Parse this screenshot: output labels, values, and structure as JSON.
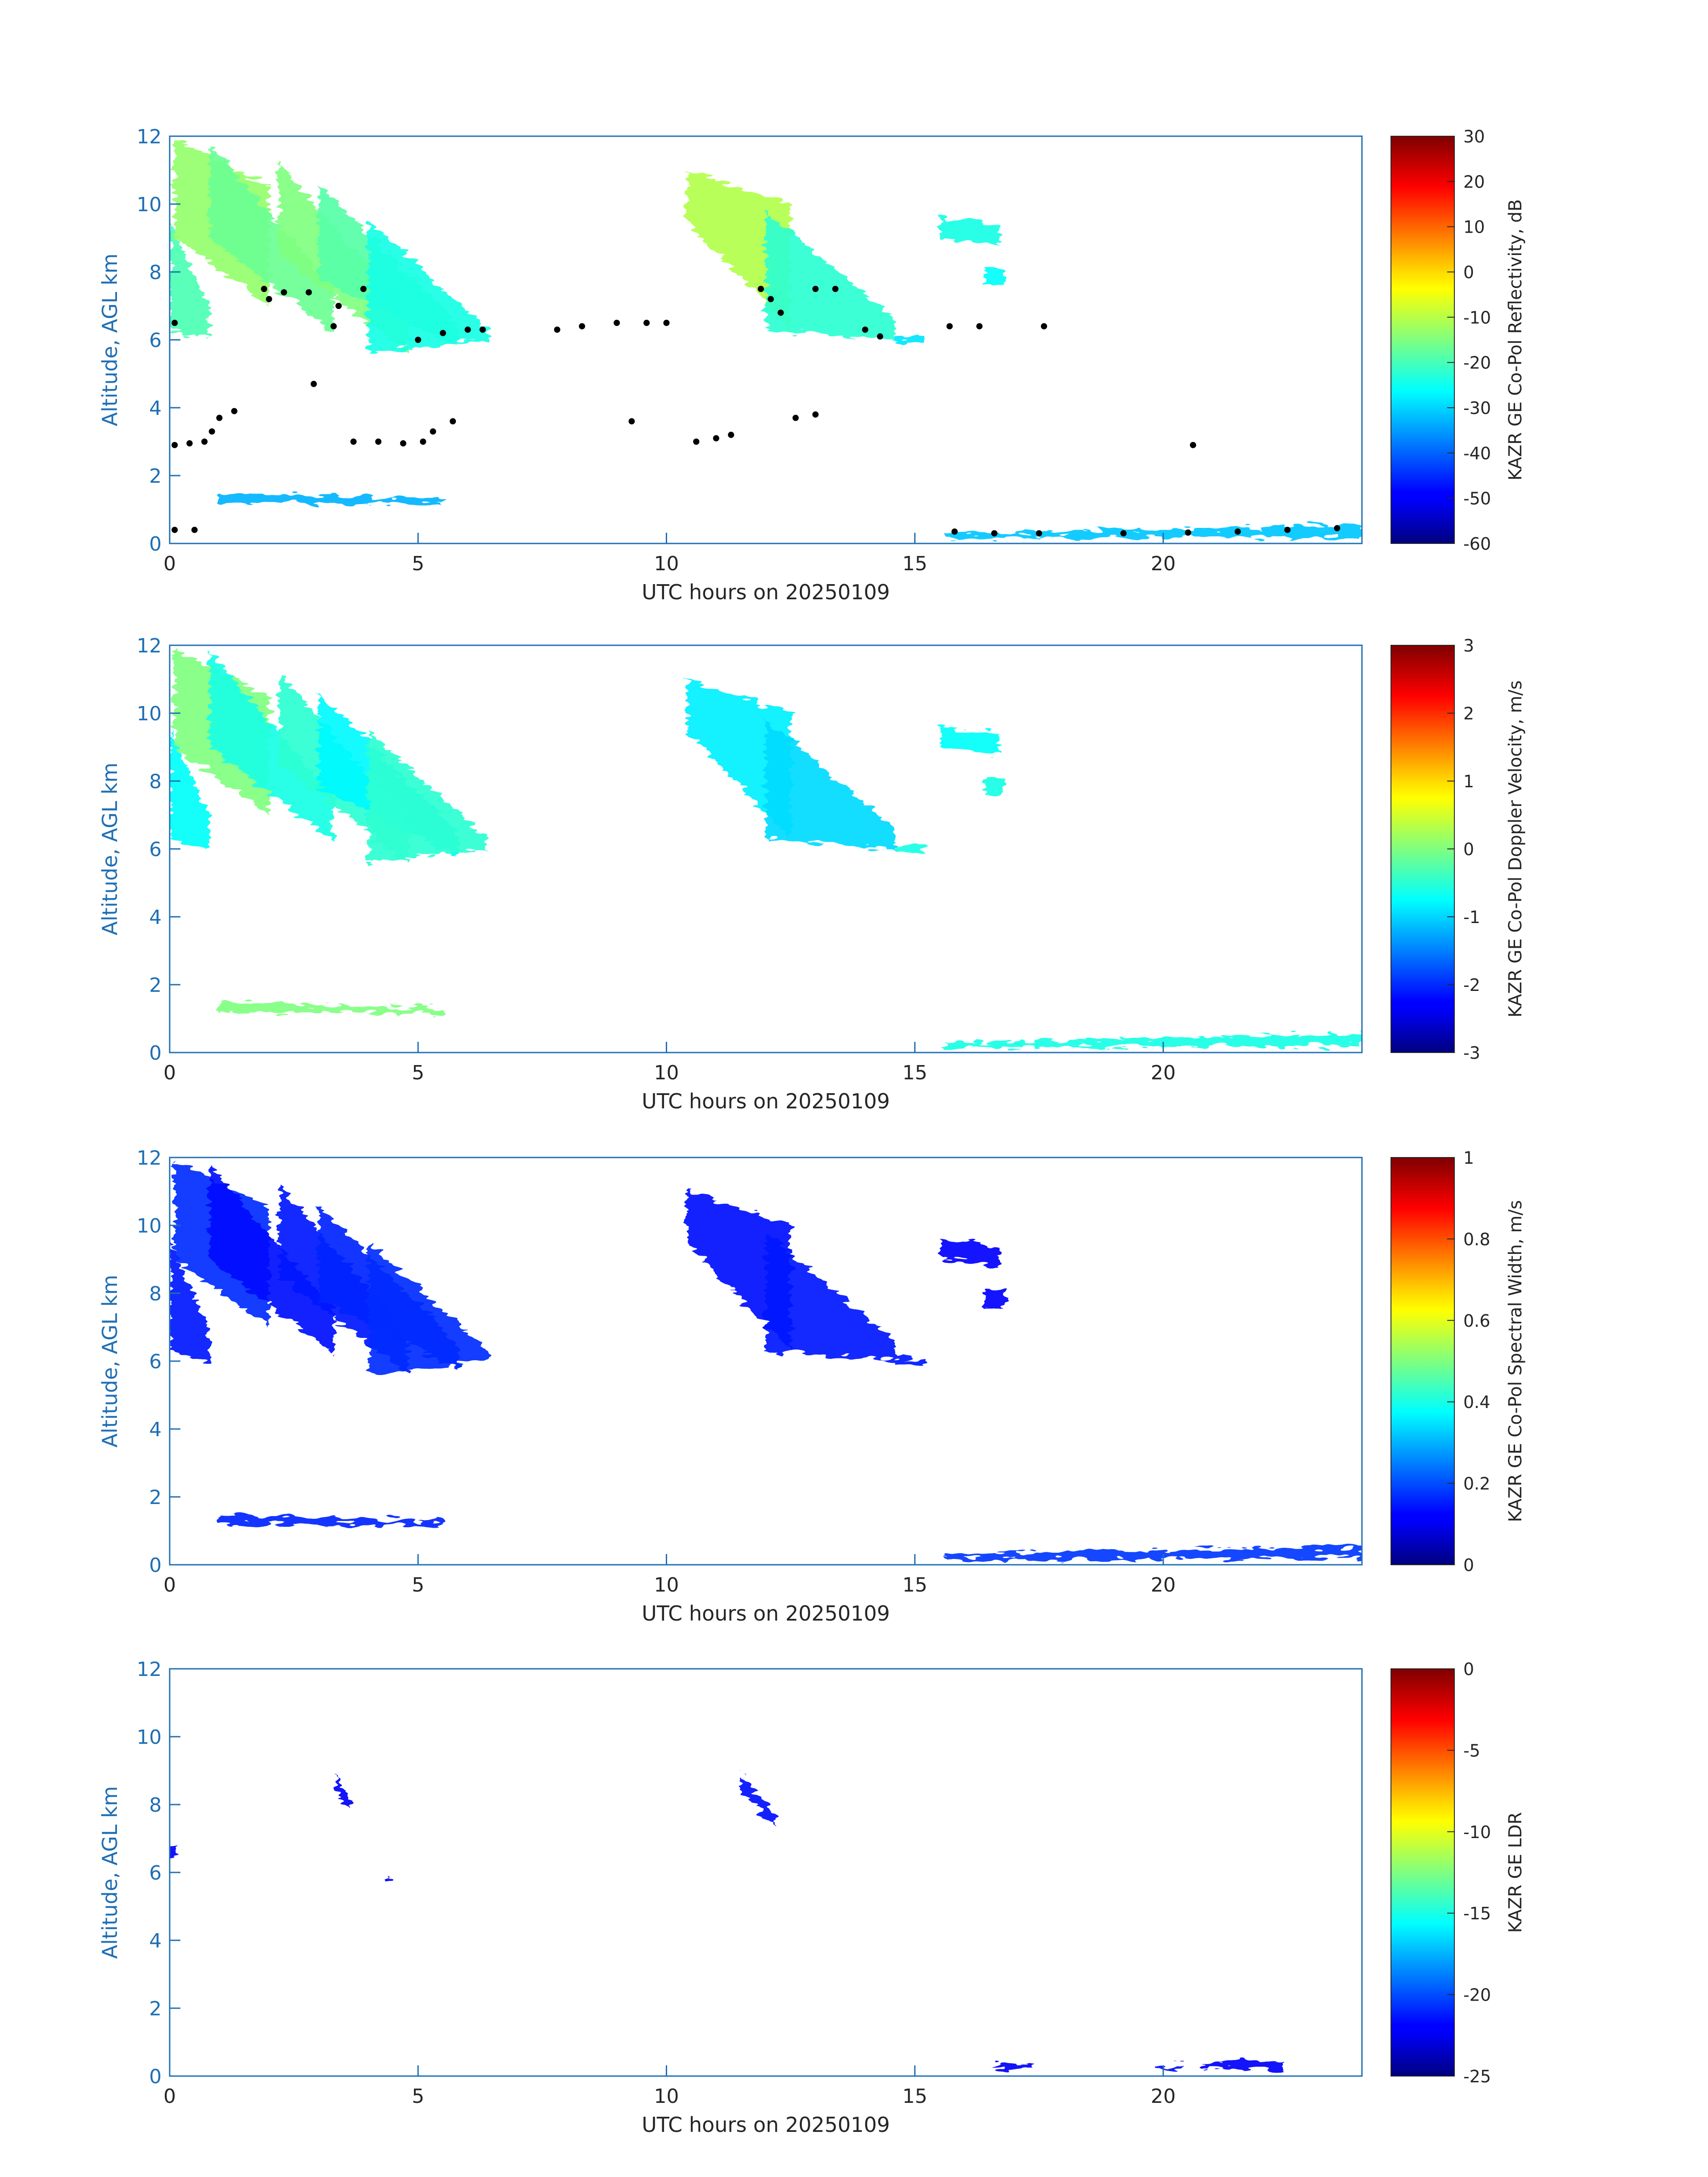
{
  "colors": {
    "axis_blue": "#1f6fb4",
    "text_dark": "#262626",
    "cloud_dots": "#000000"
  },
  "colormap": "jet",
  "chart_data": [
    {
      "type": "heatmap",
      "title": "",
      "xlabel": "UTC hours on 20250109",
      "ylabel": "Altitude, AGL km",
      "xlim": [
        0,
        24
      ],
      "ylim": [
        0,
        12
      ],
      "xticks": [
        "0",
        "5",
        "10",
        "15",
        "20"
      ],
      "yticks": [
        "0",
        "2",
        "4",
        "6",
        "8",
        "10",
        "12"
      ],
      "colorbar": {
        "label": "KAZR GE Co-Pol Reflectivity, dB",
        "ticks": [
          "30",
          "20",
          "10",
          "0",
          "-10",
          "-20",
          "-30",
          "-40",
          "-50",
          "-60"
        ],
        "range": [
          -60,
          30
        ]
      },
      "regions": [
        {
          "t0": 0.0,
          "t1": 0.8,
          "bot0": 6.3,
          "bot1": 6.0,
          "top0": 9.5,
          "top1": 7.0,
          "v": 0.45
        },
        {
          "t0": 0.1,
          "t1": 2.0,
          "bot0": 9.0,
          "bot1": 7.0,
          "top0": 11.9,
          "top1": 10.5,
          "v": 0.52
        },
        {
          "t0": 0.8,
          "t1": 3.3,
          "bot0": 9.0,
          "bot1": 6.2,
          "top0": 11.8,
          "top1": 7.5,
          "v": 0.48
        },
        {
          "t0": 2.2,
          "t1": 4.8,
          "bot0": 8.5,
          "bot1": 5.6,
          "top0": 11.2,
          "top1": 6.8,
          "v": 0.5
        },
        {
          "t0": 3.0,
          "t1": 5.8,
          "bot0": 7.8,
          "bot1": 5.8,
          "top0": 10.6,
          "top1": 6.5,
          "v": 0.46
        },
        {
          "t0": 4.0,
          "t1": 6.4,
          "bot0": 5.6,
          "bot1": 6.0,
          "top0": 9.5,
          "top1": 6.3,
          "v": 0.4
        },
        {
          "t0": 10.4,
          "t1": 12.5,
          "bot0": 9.5,
          "bot1": 6.3,
          "top0": 11.0,
          "top1": 10.0,
          "v": 0.55
        },
        {
          "t0": 12.0,
          "t1": 14.6,
          "bot0": 6.3,
          "bot1": 6.0,
          "top0": 9.8,
          "top1": 6.6,
          "v": 0.42
        },
        {
          "t0": 14.6,
          "t1": 15.2,
          "bot0": 5.9,
          "bot1": 5.9,
          "top0": 6.1,
          "top1": 6.1,
          "v": 0.35
        },
        {
          "t0": 15.5,
          "t1": 16.7,
          "bot0": 9.0,
          "bot1": 8.8,
          "top0": 9.6,
          "top1": 9.4,
          "v": 0.4
        },
        {
          "t0": 16.4,
          "t1": 16.8,
          "bot0": 7.6,
          "bot1": 7.6,
          "top0": 8.1,
          "top1": 8.1,
          "v": 0.38
        },
        {
          "t0": 1.0,
          "t1": 5.5,
          "bot0": 1.2,
          "bot1": 1.15,
          "top0": 1.5,
          "top1": 1.3,
          "v": 0.3
        },
        {
          "t0": 15.6,
          "t1": 24.0,
          "bot0": 0.15,
          "bot1": 0.2,
          "top0": 0.3,
          "top1": 0.55,
          "v": 0.32
        }
      ],
      "cloud_base_points": [
        [
          0.1,
          6.5
        ],
        [
          0.1,
          2.9
        ],
        [
          0.4,
          2.95
        ],
        [
          0.7,
          3.0
        ],
        [
          0.85,
          3.3
        ],
        [
          1.0,
          3.7
        ],
        [
          1.3,
          3.9
        ],
        [
          1.9,
          7.5
        ],
        [
          2.0,
          7.2
        ],
        [
          2.3,
          7.4
        ],
        [
          2.8,
          7.4
        ],
        [
          3.3,
          6.4
        ],
        [
          3.4,
          7.0
        ],
        [
          3.9,
          7.5
        ],
        [
          2.9,
          4.7
        ],
        [
          3.7,
          3.0
        ],
        [
          4.2,
          3.0
        ],
        [
          4.7,
          2.95
        ],
        [
          5.1,
          3.0
        ],
        [
          5.3,
          3.3
        ],
        [
          5.7,
          3.6
        ],
        [
          5.0,
          6.0
        ],
        [
          5.5,
          6.2
        ],
        [
          6.0,
          6.3
        ],
        [
          6.3,
          6.3
        ],
        [
          7.8,
          6.3
        ],
        [
          8.3,
          6.4
        ],
        [
          9.0,
          6.5
        ],
        [
          9.6,
          6.5
        ],
        [
          10.0,
          6.5
        ],
        [
          9.3,
          3.6
        ],
        [
          10.6,
          3.0
        ],
        [
          11.0,
          3.1
        ],
        [
          11.3,
          3.2
        ],
        [
          11.9,
          7.5
        ],
        [
          12.1,
          7.2
        ],
        [
          12.3,
          6.8
        ],
        [
          13.0,
          7.5
        ],
        [
          13.4,
          7.5
        ],
        [
          14.0,
          6.3
        ],
        [
          14.3,
          6.1
        ],
        [
          12.6,
          3.7
        ],
        [
          13.0,
          3.8
        ],
        [
          15.7,
          6.4
        ],
        [
          16.3,
          6.4
        ],
        [
          17.6,
          6.4
        ],
        [
          20.6,
          2.9
        ],
        [
          15.8,
          0.35
        ],
        [
          16.6,
          0.3
        ],
        [
          17.5,
          0.3
        ],
        [
          19.2,
          0.3
        ],
        [
          20.5,
          0.32
        ],
        [
          21.5,
          0.35
        ],
        [
          22.5,
          0.4
        ],
        [
          23.5,
          0.45
        ],
        [
          0.1,
          0.4
        ],
        [
          0.5,
          0.4
        ]
      ]
    },
    {
      "type": "heatmap",
      "title": "",
      "xlabel": "UTC hours on 20250109",
      "ylabel": "Altitude, AGL km",
      "xlim": [
        0,
        24
      ],
      "ylim": [
        0,
        12
      ],
      "xticks": [
        "0",
        "5",
        "10",
        "15",
        "20"
      ],
      "yticks": [
        "0",
        "2",
        "4",
        "6",
        "8",
        "10",
        "12"
      ],
      "colorbar": {
        "label": "KAZR GE Co-Pol Doppler Velocity, m/s",
        "ticks": [
          "3",
          "2",
          "1",
          "0",
          "-1",
          "-2",
          "-3"
        ],
        "range": [
          -3,
          3
        ]
      },
      "regions": [
        {
          "t0": 0.0,
          "t1": 0.8,
          "bot0": 6.3,
          "bot1": 6.0,
          "top0": 9.5,
          "top1": 7.0,
          "v": 0.38
        },
        {
          "t0": 0.1,
          "t1": 2.0,
          "bot0": 9.0,
          "bot1": 7.0,
          "top0": 11.9,
          "top1": 10.5,
          "v": 0.5
        },
        {
          "t0": 0.8,
          "t1": 3.3,
          "bot0": 9.0,
          "bot1": 6.2,
          "top0": 11.8,
          "top1": 7.5,
          "v": 0.4
        },
        {
          "t0": 2.2,
          "t1": 4.8,
          "bot0": 8.5,
          "bot1": 5.6,
          "top0": 11.2,
          "top1": 6.8,
          "v": 0.42
        },
        {
          "t0": 3.0,
          "t1": 5.8,
          "bot0": 7.8,
          "bot1": 5.8,
          "top0": 10.6,
          "top1": 6.5,
          "v": 0.37
        },
        {
          "t0": 4.0,
          "t1": 6.4,
          "bot0": 5.6,
          "bot1": 6.0,
          "top0": 9.5,
          "top1": 6.3,
          "v": 0.42
        },
        {
          "t0": 10.4,
          "t1": 12.5,
          "bot0": 9.5,
          "bot1": 6.3,
          "top0": 11.0,
          "top1": 10.0,
          "v": 0.36
        },
        {
          "t0": 12.0,
          "t1": 14.6,
          "bot0": 6.3,
          "bot1": 6.0,
          "top0": 9.8,
          "top1": 6.6,
          "v": 0.34
        },
        {
          "t0": 14.6,
          "t1": 15.2,
          "bot0": 5.9,
          "bot1": 5.9,
          "top0": 6.1,
          "top1": 6.1,
          "v": 0.4
        },
        {
          "t0": 15.5,
          "t1": 16.7,
          "bot0": 9.0,
          "bot1": 8.8,
          "top0": 9.6,
          "top1": 9.4,
          "v": 0.38
        },
        {
          "t0": 16.4,
          "t1": 16.8,
          "bot0": 7.6,
          "bot1": 7.6,
          "top0": 8.1,
          "top1": 8.1,
          "v": 0.4
        },
        {
          "t0": 1.0,
          "t1": 5.5,
          "bot0": 1.2,
          "bot1": 1.15,
          "top0": 1.5,
          "top1": 1.3,
          "v": 0.5
        },
        {
          "t0": 15.6,
          "t1": 24.0,
          "bot0": 0.15,
          "bot1": 0.2,
          "top0": 0.3,
          "top1": 0.55,
          "v": 0.4
        }
      ]
    },
    {
      "type": "heatmap",
      "title": "",
      "xlabel": "UTC hours on 20250109",
      "ylabel": "Altitude, AGL km",
      "xlim": [
        0,
        24
      ],
      "ylim": [
        0,
        12
      ],
      "xticks": [
        "0",
        "5",
        "10",
        "15",
        "20"
      ],
      "yticks": [
        "0",
        "2",
        "4",
        "6",
        "8",
        "10",
        "12"
      ],
      "colorbar": {
        "label": "KAZR GE Co-Pol Spectral Width, m/s",
        "ticks": [
          "1",
          "0.8",
          "0.6",
          "0.4",
          "0.2",
          "0"
        ],
        "range": [
          0,
          1
        ]
      },
      "regions": [
        {
          "t0": 0.0,
          "t1": 0.8,
          "bot0": 6.3,
          "bot1": 6.0,
          "top0": 9.5,
          "top1": 7.0,
          "v": 0.15
        },
        {
          "t0": 0.1,
          "t1": 2.0,
          "bot0": 9.0,
          "bot1": 7.0,
          "top0": 11.9,
          "top1": 10.5,
          "v": 0.17
        },
        {
          "t0": 0.8,
          "t1": 3.3,
          "bot0": 9.0,
          "bot1": 6.2,
          "top0": 11.8,
          "top1": 7.5,
          "v": 0.14
        },
        {
          "t0": 2.2,
          "t1": 4.8,
          "bot0": 8.5,
          "bot1": 5.6,
          "top0": 11.2,
          "top1": 6.8,
          "v": 0.15
        },
        {
          "t0": 3.0,
          "t1": 5.8,
          "bot0": 7.8,
          "bot1": 5.8,
          "top0": 10.6,
          "top1": 6.5,
          "v": 0.16
        },
        {
          "t0": 4.0,
          "t1": 6.4,
          "bot0": 5.6,
          "bot1": 6.0,
          "top0": 9.5,
          "top1": 6.3,
          "v": 0.17
        },
        {
          "t0": 10.4,
          "t1": 12.5,
          "bot0": 9.5,
          "bot1": 6.3,
          "top0": 11.0,
          "top1": 10.0,
          "v": 0.14
        },
        {
          "t0": 12.0,
          "t1": 14.6,
          "bot0": 6.3,
          "bot1": 6.0,
          "top0": 9.8,
          "top1": 6.6,
          "v": 0.15
        },
        {
          "t0": 14.6,
          "t1": 15.2,
          "bot0": 5.9,
          "bot1": 5.9,
          "top0": 6.1,
          "top1": 6.1,
          "v": 0.15
        },
        {
          "t0": 15.5,
          "t1": 16.7,
          "bot0": 9.0,
          "bot1": 8.8,
          "top0": 9.6,
          "top1": 9.4,
          "v": 0.13
        },
        {
          "t0": 16.4,
          "t1": 16.8,
          "bot0": 7.6,
          "bot1": 7.6,
          "top0": 8.1,
          "top1": 8.1,
          "v": 0.13
        },
        {
          "t0": 1.0,
          "t1": 5.5,
          "bot0": 1.2,
          "bot1": 1.15,
          "top0": 1.5,
          "top1": 1.3,
          "v": 0.16
        },
        {
          "t0": 15.6,
          "t1": 24.0,
          "bot0": 0.15,
          "bot1": 0.2,
          "top0": 0.3,
          "top1": 0.55,
          "v": 0.18
        }
      ]
    },
    {
      "type": "heatmap",
      "title": "",
      "xlabel": "UTC hours on 20250109",
      "ylabel": "Altitude, AGL km",
      "xlim": [
        0,
        24
      ],
      "ylim": [
        0,
        12
      ],
      "xticks": [
        "0",
        "5",
        "10",
        "15",
        "20"
      ],
      "yticks": [
        "0",
        "2",
        "4",
        "6",
        "8",
        "10",
        "12"
      ],
      "colorbar": {
        "label": "KAZR GE LDR",
        "ticks": [
          "0",
          "-5",
          "-10",
          "-15",
          "-20",
          "-25"
        ],
        "range": [
          -25,
          0
        ]
      },
      "regions": [
        {
          "t0": 0.0,
          "t1": 0.15,
          "bot0": 6.4,
          "bot1": 6.4,
          "top0": 6.8,
          "top1": 6.8,
          "v": 0.12
        },
        {
          "t0": 3.35,
          "t1": 3.6,
          "bot0": 8.4,
          "bot1": 7.8,
          "top0": 8.9,
          "top1": 8.2,
          "v": 0.12
        },
        {
          "t0": 4.35,
          "t1": 4.5,
          "bot0": 5.7,
          "bot1": 5.7,
          "top0": 5.85,
          "top1": 5.85,
          "v": 0.12
        },
        {
          "t0": 11.5,
          "t1": 12.2,
          "bot0": 8.4,
          "bot1": 7.3,
          "top0": 8.9,
          "top1": 7.7,
          "v": 0.14
        },
        {
          "t0": 16.6,
          "t1": 17.4,
          "bot0": 0.22,
          "bot1": 0.22,
          "top0": 0.35,
          "top1": 0.35,
          "v": 0.12
        },
        {
          "t0": 19.8,
          "t1": 20.4,
          "bot0": 0.22,
          "bot1": 0.22,
          "top0": 0.32,
          "top1": 0.32,
          "v": 0.14
        },
        {
          "t0": 20.8,
          "t1": 22.4,
          "bot0": 0.22,
          "bot1": 0.22,
          "top0": 0.4,
          "top1": 0.45,
          "v": 0.12
        }
      ]
    }
  ]
}
